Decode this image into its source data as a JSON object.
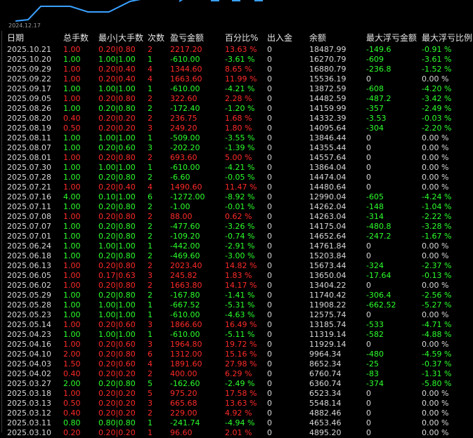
{
  "chart": {
    "x_label": "2024.12.17",
    "line_color": "#3aa0ff"
  },
  "columns": [
    "日期",
    "总手数",
    "最小|大手数",
    "次数",
    "盈亏金额",
    "百分比%",
    "出入金",
    "余额",
    "最大浮亏金额",
    "最大浮亏比例"
  ],
  "colors": {
    "profit": "#ff2a2a",
    "loss": "#2cff2c",
    "neutral": "#d8d8d8"
  },
  "rows": [
    {
      "s": "p",
      "c": [
        "2025.10.21",
        "1.00",
        "0.20|0.80",
        "2",
        "2217.20",
        "13.63 %",
        "0",
        "18487.99",
        "-149.6",
        "-0.91 %"
      ]
    },
    {
      "s": "l",
      "c": [
        "2025.10.20",
        "1.00",
        "1.00|1.00",
        "1",
        "-610.00",
        "-3.61 %",
        "0",
        "16270.79",
        "-609",
        "-3.61 %"
      ]
    },
    {
      "s": "p",
      "c": [
        "2025.09.29",
        "1.00",
        "0.20|0.40",
        "4",
        "1344.60",
        "8.65 %",
        "0",
        "16880.79",
        "-236.8",
        "-1.52 %"
      ]
    },
    {
      "s": "p",
      "c": [
        "2025.09.22",
        "1.00",
        "0.20|0.40",
        "4",
        "1663.60",
        "11.99 %",
        "0",
        "15536.19",
        "0",
        "0.00 %"
      ]
    },
    {
      "s": "l",
      "c": [
        "2025.09.17",
        "1.00",
        "1.00|1.00",
        "1",
        "-610.00",
        "-4.21 %",
        "0",
        "13872.59",
        "-608",
        "-4.20 %"
      ]
    },
    {
      "s": "p",
      "c": [
        "2025.09.05",
        "1.00",
        "0.20|0.80",
        "2",
        "322.60",
        "2.28 %",
        "0",
        "14482.59",
        "-487.2",
        "-3.42 %"
      ]
    },
    {
      "s": "l",
      "c": [
        "2025.08.26",
        "1.00",
        "0.20|0.80",
        "2",
        "-172.40",
        "-1.20 %",
        "0",
        "14159.99",
        "-357",
        "-2.49 %"
      ]
    },
    {
      "s": "p",
      "c": [
        "2025.08.20",
        "0.40",
        "0.20|0.20",
        "2",
        "236.75",
        "1.68 %",
        "0",
        "14332.39",
        "-3.53",
        "-0.03 %"
      ]
    },
    {
      "s": "p",
      "c": [
        "2025.08.19",
        "0.50",
        "0.20|0.20",
        "3",
        "249.20",
        "1.80 %",
        "0",
        "14095.64",
        "-304",
        "-2.20 %"
      ]
    },
    {
      "s": "l",
      "c": [
        "2025.08.11",
        "1.00",
        "1.00|1.00",
        "1",
        "-509.00",
        "-3.55 %",
        "0",
        "13846.44",
        "0",
        "0.00 %"
      ]
    },
    {
      "s": "l",
      "c": [
        "2025.08.07",
        "1.00",
        "0.20|0.60",
        "3",
        "-202.20",
        "-1.39 %",
        "0",
        "14355.44",
        "0",
        "0.00 %"
      ]
    },
    {
      "s": "p",
      "c": [
        "2025.08.01",
        "1.00",
        "0.20|0.80",
        "2",
        "693.60",
        "5.00 %",
        "0",
        "14557.64",
        "0",
        "0.00 %"
      ]
    },
    {
      "s": "l",
      "c": [
        "2025.07.30",
        "1.00",
        "1.00|1.00",
        "1",
        "-610.00",
        "-4.21 %",
        "0",
        "13864.04",
        "0",
        "0.00 %"
      ]
    },
    {
      "s": "l",
      "c": [
        "2025.07.28",
        "1.00",
        "0.20|0.80",
        "2",
        "-6.60",
        "-0.05 %",
        "0",
        "14474.04",
        "0",
        "0.00 %"
      ]
    },
    {
      "s": "p",
      "c": [
        "2025.07.21",
        "1.00",
        "0.20|0.40",
        "4",
        "1490.60",
        "11.47 %",
        "0",
        "14480.64",
        "0",
        "0.00 %"
      ]
    },
    {
      "s": "l",
      "c": [
        "2025.07.16",
        "4.00",
        "0.10|1.00",
        "6",
        "-1272.00",
        "-8.92 %",
        "0",
        "12990.04",
        "-605",
        "-4.24 %"
      ]
    },
    {
      "s": "l",
      "c": [
        "2025.07.11",
        "1.00",
        "0.20|0.80",
        "2",
        "-1.00",
        "-0.01 %",
        "0",
        "14262.04",
        "-148",
        "-1.04 %"
      ]
    },
    {
      "s": "p",
      "c": [
        "2025.07.08",
        "1.00",
        "0.20|0.80",
        "2",
        "88.00",
        "0.62 %",
        "0",
        "14263.04",
        "-314",
        "-2.22 %"
      ]
    },
    {
      "s": "l",
      "c": [
        "2025.07.07",
        "1.00",
        "0.20|0.80",
        "2",
        "-477.60",
        "-3.26 %",
        "0",
        "14175.04",
        "-480.8",
        "-3.28 %"
      ]
    },
    {
      "s": "l",
      "c": [
        "2025.07.01",
        "1.00",
        "0.20|0.80",
        "2",
        "-109.20",
        "-0.74 %",
        "0",
        "14652.64",
        "-247.2",
        "-1.67 %"
      ]
    },
    {
      "s": "l",
      "c": [
        "2025.06.24",
        "1.00",
        "1.00|1.00",
        "1",
        "-442.00",
        "-2.91 %",
        "0",
        "14761.84",
        "0",
        "0.00 %"
      ]
    },
    {
      "s": "l",
      "c": [
        "2025.06.18",
        "1.00",
        "0.20|0.80",
        "2",
        "-469.60",
        "-3.00 %",
        "0",
        "15203.84",
        "0",
        "0.00 %"
      ]
    },
    {
      "s": "p",
      "c": [
        "2025.06.13",
        "1.00",
        "0.20|0.80",
        "2",
        "2023.40",
        "14.82 %",
        "0",
        "15673.44",
        "-324",
        "-2.37 %"
      ]
    },
    {
      "s": "p",
      "c": [
        "2025.06.05",
        "1.00",
        "0.17|0.63",
        "3",
        "245.82",
        "1.83 %",
        "0",
        "13650.04",
        "-17.64",
        "-0.13 %"
      ]
    },
    {
      "s": "p",
      "c": [
        "2025.06.02",
        "1.00",
        "0.20|0.80",
        "2",
        "1663.80",
        "14.17 %",
        "0",
        "13404.22",
        "0",
        "0.00 %"
      ]
    },
    {
      "s": "l",
      "c": [
        "2025.05.29",
        "1.00",
        "0.20|0.80",
        "2",
        "-167.80",
        "-1.41 %",
        "0",
        "11740.42",
        "-306.4",
        "-2.56 %"
      ]
    },
    {
      "s": "l",
      "c": [
        "2025.05.28",
        "1.00",
        "1.00|1.00",
        "1",
        "-667.52",
        "-5.31 %",
        "0",
        "11908.22",
        "-662.52",
        "-5.27 %"
      ]
    },
    {
      "s": "l",
      "c": [
        "2025.05.23",
        "1.00",
        "1.00|1.00",
        "1",
        "-610.00",
        "-4.63 %",
        "0",
        "12575.74",
        "0",
        "0.00 %"
      ]
    },
    {
      "s": "p",
      "c": [
        "2025.05.14",
        "1.00",
        "0.20|0.60",
        "3",
        "1866.60",
        "16.49 %",
        "0",
        "13185.74",
        "-533",
        "-4.71 %"
      ]
    },
    {
      "s": "l",
      "c": [
        "2025.04.23",
        "1.00",
        "1.00|1.00",
        "1",
        "-610.00",
        "-5.11 %",
        "0",
        "11319.14",
        "-582",
        "-4.88 %"
      ]
    },
    {
      "s": "p",
      "c": [
        "2025.04.16",
        "1.00",
        "0.20|0.60",
        "3",
        "1964.80",
        "19.72 %",
        "0",
        "11929.14",
        "0",
        "0.00 %"
      ]
    },
    {
      "s": "p",
      "c": [
        "2025.04.10",
        "2.00",
        "0.20|0.80",
        "6",
        "1312.00",
        "15.16 %",
        "0",
        "9964.34",
        "-480",
        "-4.59 %"
      ]
    },
    {
      "s": "p",
      "c": [
        "2025.04.03",
        "1.50",
        "0.20|0.60",
        "4",
        "1891.60",
        "27.98 %",
        "0",
        "8652.34",
        "-25",
        "-0.37 %"
      ]
    },
    {
      "s": "p",
      "c": [
        "2025.04.02",
        "0.40",
        "0.20|0.20",
        "2",
        "400.00",
        "6.29 %",
        "0",
        "6760.74",
        "-83",
        "-1.31 %"
      ]
    },
    {
      "s": "l",
      "c": [
        "2025.03.27",
        "2.00",
        "0.20|0.80",
        "5",
        "-162.60",
        "-2.49 %",
        "0",
        "6360.74",
        "-374",
        "-5.80 %"
      ]
    },
    {
      "s": "p",
      "c": [
        "2025.03.18",
        "1.00",
        "0.20|0.20",
        "5",
        "975.20",
        "17.58 %",
        "0",
        "6523.34",
        "0",
        "0.00 %"
      ]
    },
    {
      "s": "p",
      "c": [
        "2025.03.13",
        "0.50",
        "0.20|0.20",
        "3",
        "665.68",
        "13.63 %",
        "0",
        "5548.14",
        "0",
        "0.00 %"
      ]
    },
    {
      "s": "p",
      "c": [
        "2025.03.12",
        "0.40",
        "0.20|0.20",
        "2",
        "229.00",
        "4.92 %",
        "0",
        "4882.46",
        "0",
        "0.00 %"
      ]
    },
    {
      "s": "l",
      "c": [
        "2025.03.11",
        "0.80",
        "0.80|0.80",
        "1",
        "-241.74",
        "-4.94 %",
        "0",
        "4653.46",
        "0",
        "0.00 %"
      ]
    },
    {
      "s": "p",
      "c": [
        "2025.03.10",
        "0.20",
        "0.20|0.20",
        "1",
        "96.60",
        "2.01 %",
        "0",
        "4895.20",
        "0",
        "0.00 %"
      ]
    }
  ]
}
